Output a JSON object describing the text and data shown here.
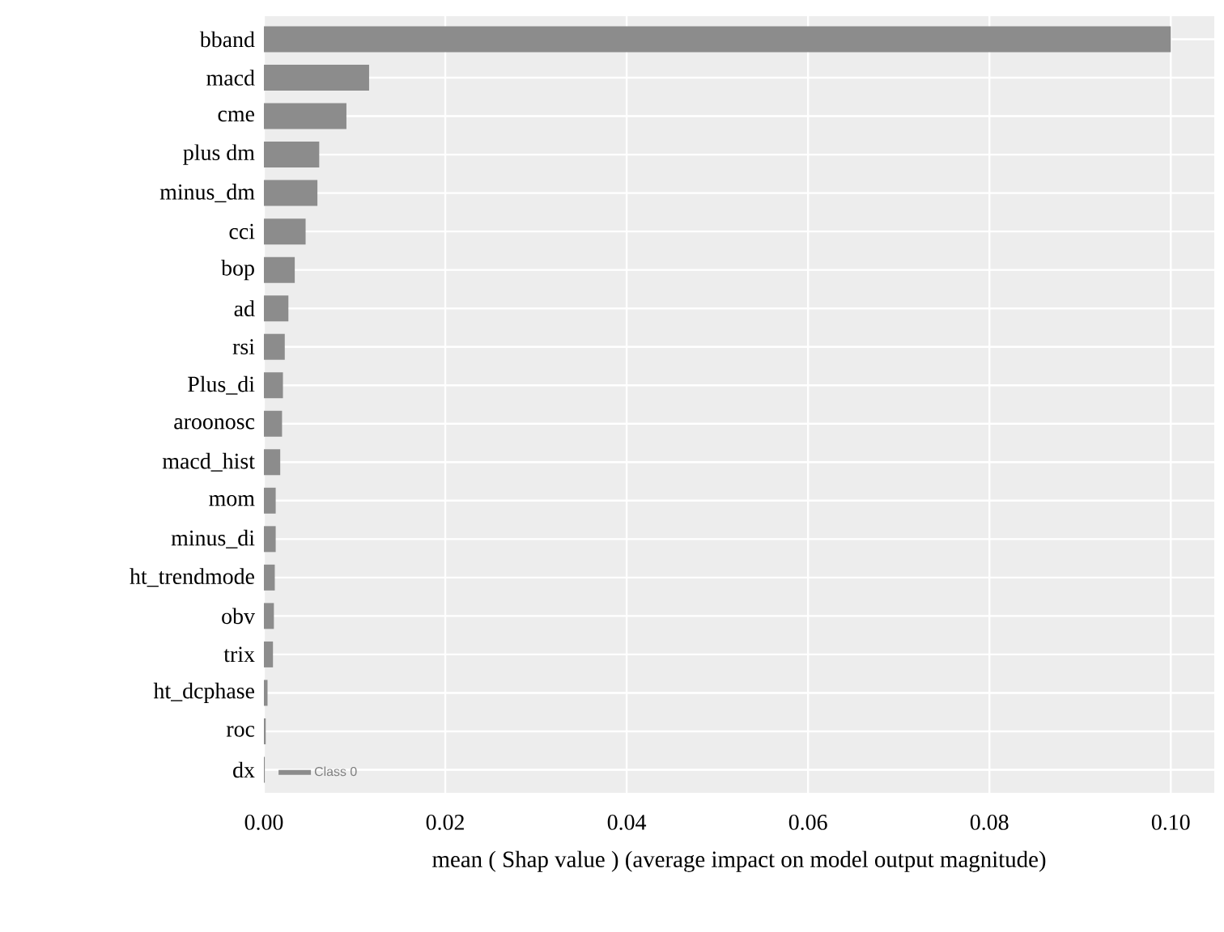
{
  "chart_data": {
    "type": "bar",
    "orientation": "horizontal",
    "categories": [
      "bband",
      "macd",
      "cme",
      "plus  dm",
      "minus_dm",
      "cci",
      "bop",
      "ad",
      "rsi",
      "Plus_di",
      "aroonosc",
      "macd_hist",
      "mom",
      "minus_di",
      "ht_trendmode",
      "obv",
      "trix",
      "ht_dcphase",
      "roc",
      "dx"
    ],
    "series": [
      {
        "name": "Class 0",
        "color": "#8c8c8c",
        "values": [
          0.1,
          0.0116,
          0.0091,
          0.0061,
          0.0059,
          0.0046,
          0.0034,
          0.0027,
          0.0023,
          0.0021,
          0.002,
          0.0018,
          0.0013,
          0.0013,
          0.0012,
          0.0011,
          0.001,
          0.0004,
          0.0002,
          0.0001
        ]
      }
    ],
    "xlim": [
      0,
      0.1048
    ],
    "xticks": [
      {
        "value": 0,
        "label": "0.00"
      },
      {
        "value": 0.02,
        "label": "0.02"
      },
      {
        "value": 0.04,
        "label": "0.04"
      },
      {
        "value": 0.06,
        "label": "0.06"
      },
      {
        "value": 0.08,
        "label": "0.08"
      },
      {
        "value": 0.1,
        "label": "0.10"
      }
    ],
    "xlabel": "mean ( Shap value ) (average impact on model output magnitude)",
    "grid": true,
    "legend": "bottom left"
  }
}
